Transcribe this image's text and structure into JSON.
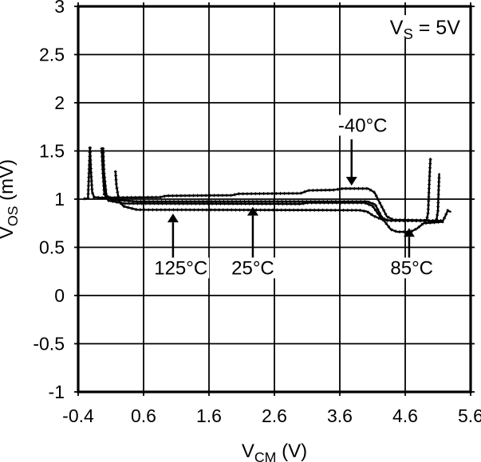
{
  "chart_data": {
    "type": "line",
    "condition": {
      "parts": [
        {
          "t": "V",
          "sub": false
        },
        {
          "t": "S",
          "sub": true
        },
        {
          "t": " = 5V",
          "sub": false
        }
      ],
      "anchor_x": 5.44,
      "baseline_v": 2.71
    },
    "x_axis": {
      "label_parts": [
        {
          "t": "V",
          "sub": false
        },
        {
          "t": "CM",
          "sub": true
        },
        {
          "t": " (V)",
          "sub": false
        }
      ],
      "range": [
        -0.4,
        5.6
      ],
      "ticks": [
        -0.4,
        0.6,
        1.6,
        2.6,
        3.6,
        4.6,
        5.6
      ],
      "tick_labels": [
        "-0.4",
        "0.6",
        "1.6",
        "2.6",
        "3.6",
        "4.6",
        "5.6"
      ]
    },
    "y_axis": {
      "label_parts": [
        {
          "t": "V",
          "sub": false
        },
        {
          "t": "OS",
          "sub": true
        },
        {
          "t": " (mV)",
          "sub": false
        }
      ],
      "range": [
        -1,
        3
      ],
      "ticks": [
        3,
        2.5,
        2,
        1.5,
        1,
        0.5,
        0,
        -0.5,
        -1
      ],
      "tick_labels": [
        "3",
        "2.5",
        "2",
        "1.5",
        "1",
        "0.5",
        "0",
        "-0.5",
        "-1"
      ]
    },
    "grid": true,
    "legend": "none",
    "colors": {
      "line": "#000000",
      "grid": "#000000",
      "background": "#ffffff",
      "text": "#000000"
    },
    "series": [
      {
        "label": "-40°C",
        "annotation": {
          "label_x": 3.95,
          "label_v": 1.7,
          "arrow_x": 3.78,
          "tail_v": 1.62,
          "tip_v": 1.14,
          "dir": "down"
        },
        "points": [
          [
            -0.31,
            1.005
          ],
          [
            -0.25,
            1.005
          ],
          [
            -0.22,
            1.53
          ],
          [
            -0.205,
            1.3
          ],
          [
            -0.185,
            1.07
          ],
          [
            -0.155,
            1.02
          ],
          [
            -0.05,
            1.015
          ],
          [
            0.85,
            1.02
          ],
          [
            0.95,
            1.035
          ],
          [
            1.95,
            1.04
          ],
          [
            2.05,
            1.055
          ],
          [
            3.0,
            1.06
          ],
          [
            3.12,
            1.09
          ],
          [
            3.5,
            1.095
          ],
          [
            3.65,
            1.11
          ],
          [
            4.03,
            1.11
          ],
          [
            4.13,
            1.07
          ],
          [
            4.22,
            0.95
          ],
          [
            4.32,
            0.82
          ],
          [
            4.42,
            0.785
          ],
          [
            4.9,
            0.78
          ],
          [
            4.93,
            0.79
          ],
          [
            4.95,
            0.86
          ],
          [
            4.97,
            1.2
          ],
          [
            4.985,
            1.42
          ]
        ]
      },
      {
        "label": "25°C",
        "annotation": {
          "label_x": 2.27,
          "label_v": 0.22,
          "arrow_x": 2.27,
          "tail_v": 0.3,
          "tip_v": 0.92,
          "dir": "up"
        },
        "points": [
          [
            -0.04,
            1.53
          ],
          [
            -0.025,
            1.3
          ],
          [
            0.0,
            1.05
          ],
          [
            0.06,
            0.985
          ],
          [
            0.3,
            0.955
          ],
          [
            3.0,
            0.95
          ],
          [
            3.12,
            0.962
          ],
          [
            3.98,
            0.962
          ],
          [
            4.1,
            0.93
          ],
          [
            4.22,
            0.815
          ],
          [
            4.33,
            0.78
          ],
          [
            5.05,
            0.775
          ],
          [
            5.08,
            0.79
          ],
          [
            5.1,
            0.88
          ],
          [
            5.12,
            1.26
          ]
        ]
      },
      {
        "label": "85°C",
        "annotation": {
          "label_x": 4.7,
          "label_v": 0.22,
          "arrow_x": 4.66,
          "tail_v": 0.3,
          "tip_v": 0.7,
          "dir": "up"
        },
        "points": [
          [
            -0.02,
            1.53
          ],
          [
            -0.005,
            1.28
          ],
          [
            0.03,
            1.04
          ],
          [
            0.12,
            0.995
          ],
          [
            0.5,
            0.975
          ],
          [
            4.02,
            0.975
          ],
          [
            4.14,
            0.945
          ],
          [
            4.26,
            0.79
          ],
          [
            4.38,
            0.685
          ],
          [
            4.48,
            0.66
          ],
          [
            4.68,
            0.66
          ],
          [
            4.78,
            0.695
          ],
          [
            4.88,
            0.75
          ],
          [
            5.05,
            0.758
          ],
          [
            5.17,
            0.765
          ],
          [
            5.21,
            0.82
          ],
          [
            5.25,
            0.88
          ],
          [
            5.29,
            0.87
          ]
        ]
      },
      {
        "label": "125°C",
        "annotation": {
          "label_x": 1.17,
          "label_v": 0.22,
          "arrow_x": 1.05,
          "tail_v": 0.3,
          "tip_v": 0.85,
          "dir": "up"
        },
        "points": [
          [
            0.17,
            1.29
          ],
          [
            0.185,
            1.14
          ],
          [
            0.225,
            0.975
          ],
          [
            0.295,
            0.925
          ],
          [
            0.5,
            0.89
          ],
          [
            3.9,
            0.885
          ],
          [
            4.02,
            0.87
          ],
          [
            4.12,
            0.825
          ],
          [
            4.24,
            0.79
          ],
          [
            4.38,
            0.778
          ],
          [
            5.12,
            0.775
          ],
          [
            5.16,
            0.778
          ]
        ]
      }
    ]
  }
}
